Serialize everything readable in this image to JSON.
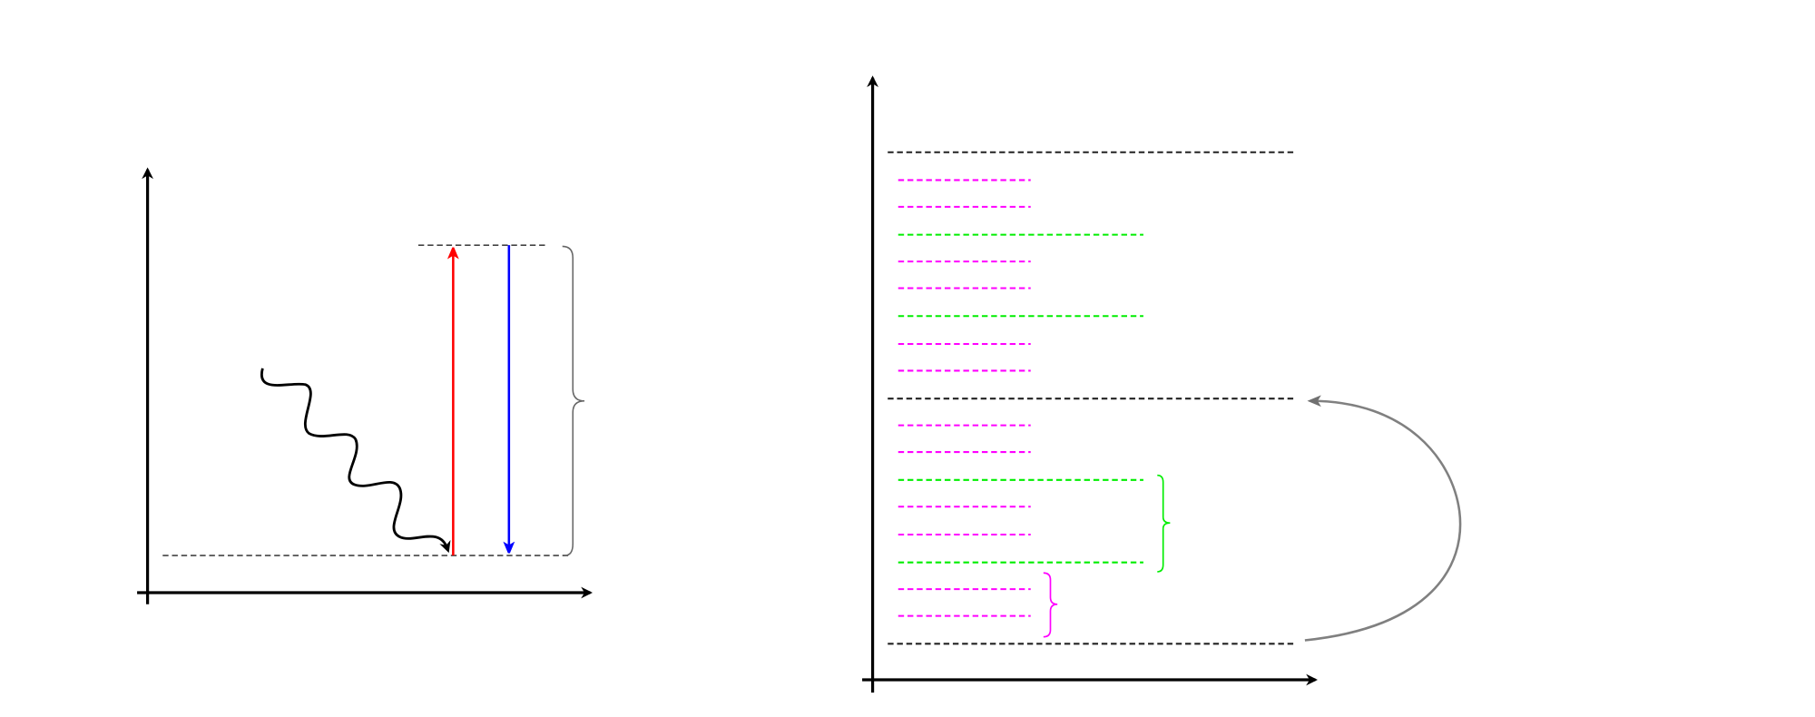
{
  "diagram": {
    "left_panel": {
      "excitation_arrow_color": "#ff0000",
      "emission_arrow_color": "#0000ff",
      "photon_wave_color": "#000000",
      "level_line_color": "#444444",
      "brace_color": "#666666"
    },
    "right_panel": {
      "main_level_color": "#222222",
      "sublevel_color_magenta": "#ff00ff",
      "sublevel_color_green": "#00ee00",
      "transfer_arrow_color": "#808080",
      "levels": [
        "black",
        "magenta",
        "magenta",
        "green",
        "magenta",
        "magenta",
        "green",
        "magenta",
        "magenta",
        "black",
        "magenta",
        "magenta",
        "green",
        "magenta",
        "magenta",
        "green",
        "magenta",
        "magenta",
        "black"
      ]
    }
  }
}
